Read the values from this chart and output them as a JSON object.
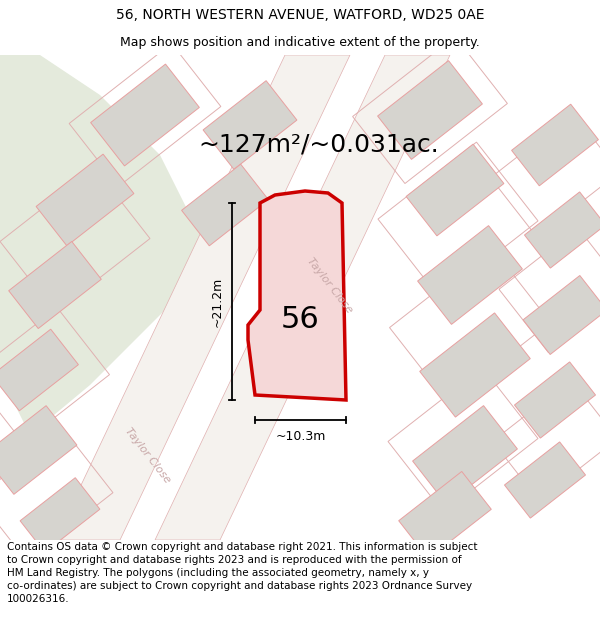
{
  "title_line1": "56, NORTH WESTERN AVENUE, WATFORD, WD25 0AE",
  "title_line2": "Map shows position and indicative extent of the property.",
  "area_label": "~127m²/~0.031ac.",
  "dim_width": "~10.3m",
  "dim_height": "~21.2m",
  "number_label": "56",
  "road_label": "Taylor Close",
  "road_label2": "Taylor Close",
  "footer_text": "Contains OS data © Crown copyright and database right 2021. This information is subject to Crown copyright and database rights 2023 and is reproduced with the permission of HM Land Registry. The polygons (including the associated geometry, namely x, y co-ordinates) are subject to Crown copyright and database rights 2023 Ordnance Survey 100026316.",
  "bg_color": "#ffffff",
  "map_bg": "#f2f0ed",
  "green_area_color": "#e4eadc",
  "building_fill": "#d6d4cf",
  "building_stroke": "#e8a0a0",
  "road_fill": "#faf8f5",
  "road_stroke": "#e0b0b0",
  "highlight_stroke": "#cc0000",
  "highlight_fill": "#f5d8d8",
  "dim_color": "#000000",
  "text_color": "#000000",
  "title_fontsize": 10,
  "subtitle_fontsize": 9,
  "area_fontsize": 18,
  "number_fontsize": 22,
  "footer_fontsize": 7.5,
  "road_text_color": "#c8a8a8",
  "road_text_size": 8
}
